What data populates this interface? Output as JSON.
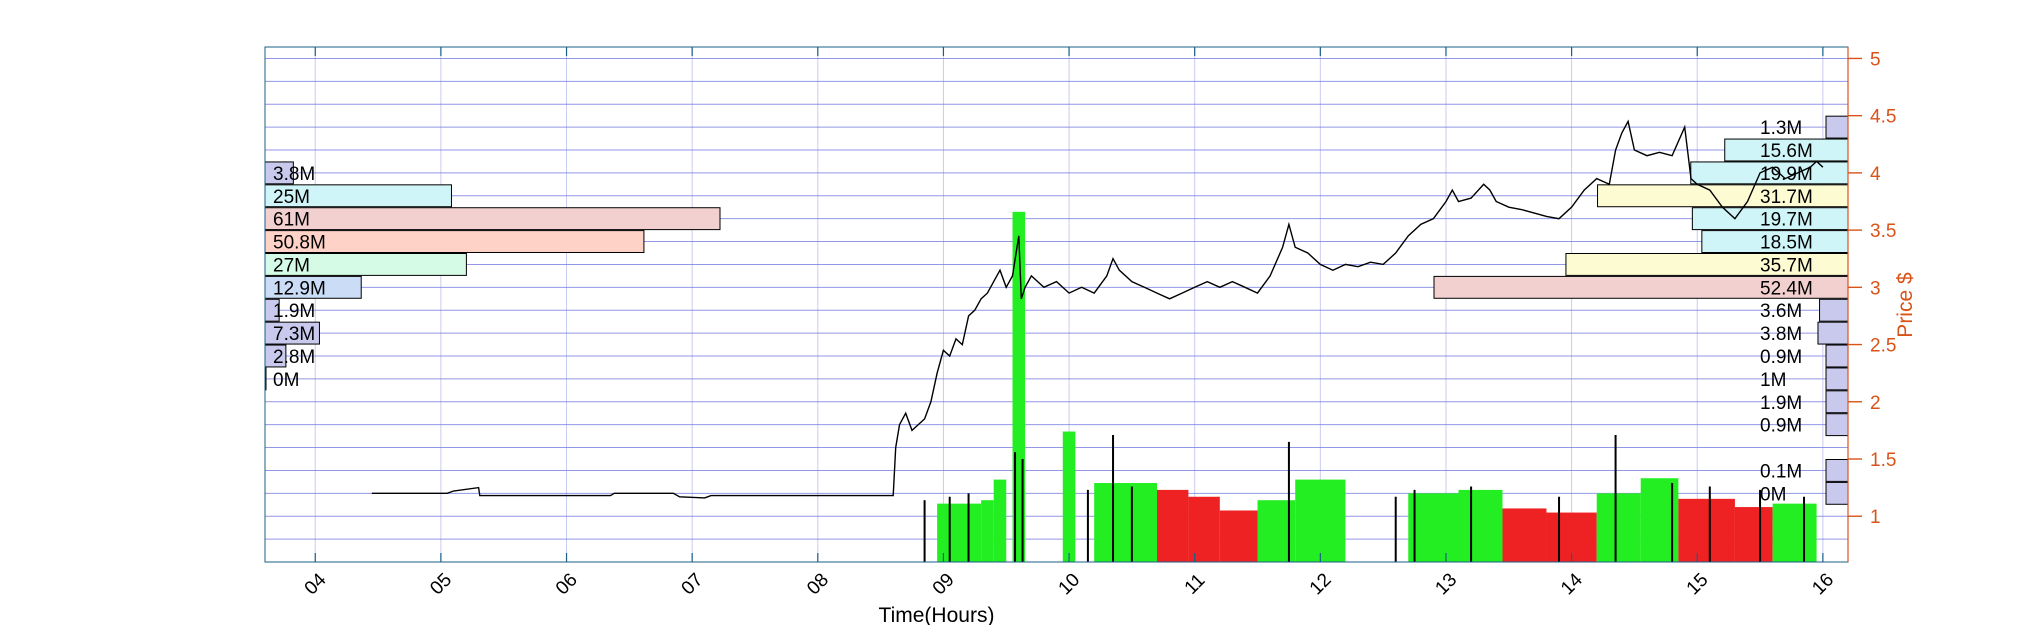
{
  "chart_data": {
    "type": "line",
    "xlabel": "Time(Hours)",
    "ylabel_right": "Price $",
    "x_range_hours": [
      3.6,
      16.2
    ],
    "y_range": [
      0.6,
      5.1
    ],
    "x_ticks": [
      {
        "v": 4,
        "label": "04"
      },
      {
        "v": 5,
        "label": "05"
      },
      {
        "v": 6,
        "label": "06"
      },
      {
        "v": 7,
        "label": "07"
      },
      {
        "v": 8,
        "label": "08"
      },
      {
        "v": 9,
        "label": "09"
      },
      {
        "v": 10,
        "label": "10"
      },
      {
        "v": 11,
        "label": "11"
      },
      {
        "v": 12,
        "label": "12"
      },
      {
        "v": 13,
        "label": "13"
      },
      {
        "v": 14,
        "label": "14"
      },
      {
        "v": 15,
        "label": "15"
      },
      {
        "v": 16,
        "label": "16"
      }
    ],
    "y_ticks": [
      {
        "v": 1,
        "label": "1"
      },
      {
        "v": 1.5,
        "label": "1.5"
      },
      {
        "v": 2,
        "label": "2"
      },
      {
        "v": 2.5,
        "label": "2.5"
      },
      {
        "v": 3,
        "label": "3"
      },
      {
        "v": 3.5,
        "label": "3.5"
      },
      {
        "v": 4,
        "label": "4"
      },
      {
        "v": 4.5,
        "label": "4.5"
      },
      {
        "v": 5,
        "label": "5"
      }
    ],
    "grid": true,
    "colors": {
      "price_line": "#000000",
      "right_axis": "#D95319",
      "grid_h": "#6f74e0",
      "grid_v": "#c9cbf0",
      "bar_up": "#22ee22",
      "bar_down": "#ee2222",
      "vp_purple": "#c9c9ee",
      "vp_cyan": "#cff5f8",
      "vp_mint": "#d5fbe6",
      "vp_pink": "#f2d0d0",
      "vp_salmon": "#ffd2c8",
      "vp_yellow": "#fdfbd2",
      "vp_blue": "#cadcf6"
    },
    "price_series": [
      [
        4.45,
        1.2
      ],
      [
        4.8,
        1.2
      ],
      [
        5.05,
        1.2
      ],
      [
        5.1,
        1.22
      ],
      [
        5.3,
        1.25
      ],
      [
        5.31,
        1.18
      ],
      [
        6.35,
        1.18
      ],
      [
        6.38,
        1.2
      ],
      [
        6.85,
        1.2
      ],
      [
        6.9,
        1.17
      ],
      [
        7.1,
        1.16
      ],
      [
        7.15,
        1.18
      ],
      [
        8.6,
        1.18
      ],
      [
        8.62,
        1.6
      ],
      [
        8.65,
        1.8
      ],
      [
        8.7,
        1.9
      ],
      [
        8.75,
        1.75
      ],
      [
        8.85,
        1.85
      ],
      [
        8.9,
        2.0
      ],
      [
        8.95,
        2.25
      ],
      [
        9.0,
        2.45
      ],
      [
        9.05,
        2.4
      ],
      [
        9.1,
        2.55
      ],
      [
        9.15,
        2.5
      ],
      [
        9.2,
        2.75
      ],
      [
        9.25,
        2.8
      ],
      [
        9.3,
        2.9
      ],
      [
        9.35,
        2.95
      ],
      [
        9.4,
        3.05
      ],
      [
        9.45,
        3.15
      ],
      [
        9.5,
        3.0
      ],
      [
        9.55,
        3.1
      ],
      [
        9.6,
        3.45
      ],
      [
        9.62,
        2.9
      ],
      [
        9.65,
        3.0
      ],
      [
        9.7,
        3.1
      ],
      [
        9.8,
        3.0
      ],
      [
        9.9,
        3.05
      ],
      [
        10.0,
        2.95
      ],
      [
        10.1,
        3.0
      ],
      [
        10.2,
        2.95
      ],
      [
        10.3,
        3.1
      ],
      [
        10.35,
        3.25
      ],
      [
        10.4,
        3.15
      ],
      [
        10.5,
        3.05
      ],
      [
        10.6,
        3.0
      ],
      [
        10.7,
        2.95
      ],
      [
        10.8,
        2.9
      ],
      [
        10.9,
        2.95
      ],
      [
        11.0,
        3.0
      ],
      [
        11.1,
        3.05
      ],
      [
        11.2,
        3.0
      ],
      [
        11.3,
        3.05
      ],
      [
        11.4,
        3.0
      ],
      [
        11.5,
        2.95
      ],
      [
        11.6,
        3.1
      ],
      [
        11.7,
        3.35
      ],
      [
        11.75,
        3.55
      ],
      [
        11.8,
        3.35
      ],
      [
        11.9,
        3.3
      ],
      [
        12.0,
        3.2
      ],
      [
        12.1,
        3.15
      ],
      [
        12.2,
        3.2
      ],
      [
        12.3,
        3.18
      ],
      [
        12.4,
        3.22
      ],
      [
        12.5,
        3.2
      ],
      [
        12.6,
        3.3
      ],
      [
        12.7,
        3.45
      ],
      [
        12.8,
        3.55
      ],
      [
        12.9,
        3.6
      ],
      [
        13.0,
        3.75
      ],
      [
        13.05,
        3.85
      ],
      [
        13.1,
        3.75
      ],
      [
        13.2,
        3.78
      ],
      [
        13.3,
        3.9
      ],
      [
        13.35,
        3.85
      ],
      [
        13.4,
        3.75
      ],
      [
        13.5,
        3.7
      ],
      [
        13.6,
        3.68
      ],
      [
        13.7,
        3.65
      ],
      [
        13.8,
        3.62
      ],
      [
        13.9,
        3.6
      ],
      [
        14.0,
        3.7
      ],
      [
        14.1,
        3.85
      ],
      [
        14.2,
        3.95
      ],
      [
        14.3,
        3.9
      ],
      [
        14.35,
        4.2
      ],
      [
        14.4,
        4.35
      ],
      [
        14.45,
        4.45
      ],
      [
        14.5,
        4.2
      ],
      [
        14.6,
        4.15
      ],
      [
        14.7,
        4.18
      ],
      [
        14.8,
        4.15
      ],
      [
        14.9,
        4.4
      ],
      [
        14.95,
        3.95
      ],
      [
        15.0,
        3.9
      ],
      [
        15.1,
        3.85
      ],
      [
        15.2,
        3.7
      ],
      [
        15.3,
        3.6
      ],
      [
        15.4,
        3.75
      ],
      [
        15.5,
        4.0
      ],
      [
        15.6,
        4.05
      ],
      [
        15.7,
        3.95
      ],
      [
        15.8,
        4.0
      ],
      [
        15.9,
        4.05
      ],
      [
        15.95,
        4.1
      ],
      [
        16.0,
        4.05
      ]
    ],
    "volume_bars": [
      {
        "x0": 8.95,
        "x1": 9.3,
        "h": 0.85,
        "dir": "up"
      },
      {
        "x0": 9.3,
        "x1": 9.4,
        "h": 0.9,
        "dir": "up"
      },
      {
        "x0": 9.4,
        "x1": 9.5,
        "h": 1.2,
        "dir": "up"
      },
      {
        "x0": 9.55,
        "x1": 9.65,
        "h": 5.1,
        "dir": "up"
      },
      {
        "x0": 9.95,
        "x1": 10.05,
        "h": 1.9,
        "dir": "up"
      },
      {
        "x0": 10.2,
        "x1": 10.7,
        "h": 1.15,
        "dir": "up"
      },
      {
        "x0": 10.7,
        "x1": 10.95,
        "h": 1.05,
        "dir": "down"
      },
      {
        "x0": 10.95,
        "x1": 11.2,
        "h": 0.95,
        "dir": "down"
      },
      {
        "x0": 11.2,
        "x1": 11.5,
        "h": 0.75,
        "dir": "down"
      },
      {
        "x0": 11.5,
        "x1": 11.8,
        "h": 0.9,
        "dir": "up"
      },
      {
        "x0": 11.8,
        "x1": 12.2,
        "h": 1.2,
        "dir": "up"
      },
      {
        "x0": 12.7,
        "x1": 13.1,
        "h": 1.0,
        "dir": "up"
      },
      {
        "x0": 13.1,
        "x1": 13.45,
        "h": 1.05,
        "dir": "up"
      },
      {
        "x0": 13.45,
        "x1": 13.8,
        "h": 0.78,
        "dir": "down"
      },
      {
        "x0": 13.8,
        "x1": 14.2,
        "h": 0.72,
        "dir": "down"
      },
      {
        "x0": 14.2,
        "x1": 14.55,
        "h": 1.0,
        "dir": "up"
      },
      {
        "x0": 14.55,
        "x1": 14.85,
        "h": 1.22,
        "dir": "up"
      },
      {
        "x0": 14.85,
        "x1": 15.3,
        "h": 0.92,
        "dir": "down"
      },
      {
        "x0": 15.3,
        "x1": 15.6,
        "h": 0.8,
        "dir": "down"
      },
      {
        "x0": 15.6,
        "x1": 15.95,
        "h": 0.85,
        "dir": "up"
      }
    ],
    "volume_spikes": [
      [
        9.57,
        1.6
      ],
      [
        9.63,
        1.5
      ],
      [
        10.35,
        1.85
      ],
      [
        11.75,
        1.75
      ],
      [
        14.35,
        1.85
      ],
      [
        8.85,
        0.9
      ],
      [
        9.05,
        0.95
      ],
      [
        9.2,
        1.0
      ],
      [
        10.15,
        1.05
      ],
      [
        10.5,
        1.1
      ],
      [
        12.6,
        0.95
      ],
      [
        12.75,
        1.05
      ],
      [
        13.2,
        1.1
      ],
      [
        13.9,
        0.95
      ],
      [
        14.8,
        1.15
      ],
      [
        15.1,
        1.1
      ],
      [
        15.5,
        1.05
      ],
      [
        15.85,
        0.95
      ]
    ],
    "volume_profile_left": [
      {
        "price": 4.0,
        "label": "3.8M",
        "value": 3.8,
        "color": "vp_purple"
      },
      {
        "price": 3.8,
        "label": "25M",
        "value": 25,
        "color": "vp_cyan"
      },
      {
        "price": 3.6,
        "label": "61M",
        "value": 61,
        "color": "vp_pink"
      },
      {
        "price": 3.4,
        "label": "50.8M",
        "value": 50.8,
        "color": "vp_salmon"
      },
      {
        "price": 3.2,
        "label": "27M",
        "value": 27,
        "color": "vp_mint"
      },
      {
        "price": 3.0,
        "label": "12.9M",
        "value": 12.9,
        "color": "vp_blue"
      },
      {
        "price": 2.8,
        "label": "1.9M",
        "value": 1.9,
        "color": "vp_purple"
      },
      {
        "price": 2.6,
        "label": "7.3M",
        "value": 7.3,
        "color": "vp_purple"
      },
      {
        "price": 2.4,
        "label": "2.8M",
        "value": 2.8,
        "color": "vp_purple"
      },
      {
        "price": 2.2,
        "label": "0M",
        "value": 0,
        "color": "vp_purple"
      }
    ],
    "volume_profile_right": [
      {
        "price": 4.4,
        "label": "1.3M",
        "value": 1.3,
        "color": "vp_purple"
      },
      {
        "price": 4.2,
        "label": "15.6M",
        "value": 15.6,
        "color": "vp_cyan"
      },
      {
        "price": 4.0,
        "label": "19.9M",
        "value": 19.9,
        "color": "vp_cyan"
      },
      {
        "price": 3.8,
        "label": "31.7M",
        "value": 31.7,
        "color": "vp_yellow"
      },
      {
        "price": 3.6,
        "label": "19.7M",
        "value": 19.7,
        "color": "vp_cyan"
      },
      {
        "price": 3.4,
        "label": "18.5M",
        "value": 18.5,
        "color": "vp_cyan"
      },
      {
        "price": 3.2,
        "label": "35.7M",
        "value": 35.7,
        "color": "vp_yellow"
      },
      {
        "price": 3.0,
        "label": "52.4M",
        "value": 52.4,
        "color": "vp_pink"
      },
      {
        "price": 2.8,
        "label": "3.6M",
        "value": 3.6,
        "color": "vp_purple"
      },
      {
        "price": 2.6,
        "label": "3.8M",
        "value": 3.8,
        "color": "vp_purple"
      },
      {
        "price": 2.4,
        "label": "0.9M",
        "value": 0.9,
        "color": "vp_purple"
      },
      {
        "price": 2.2,
        "label": "1M",
        "value": 1,
        "color": "vp_purple"
      },
      {
        "price": 2.0,
        "label": "1.9M",
        "value": 1.9,
        "color": "vp_purple"
      },
      {
        "price": 1.8,
        "label": "0.9M",
        "value": 0.9,
        "color": "vp_purple"
      },
      {
        "price": 1.4,
        "label": "0.1M",
        "value": 0.1,
        "color": "vp_purple"
      },
      {
        "price": 1.2,
        "label": "0M",
        "value": 0,
        "color": "vp_purple"
      }
    ]
  }
}
